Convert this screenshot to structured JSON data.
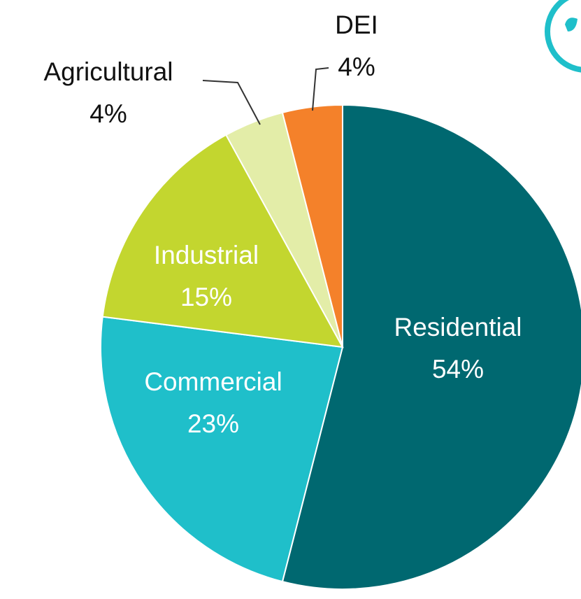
{
  "chart_data": {
    "type": "pie",
    "categories": [
      "Residential",
      "Commercial",
      "Industrial",
      "Agricultural",
      "DEI"
    ],
    "values": [
      54,
      23,
      15,
      4,
      4
    ],
    "value_labels": [
      "54%",
      "23%",
      "15%",
      "4%",
      "4%"
    ],
    "colors": [
      "#006870",
      "#1fbfca",
      "#c3d62f",
      "#e3eda8",
      "#f4812a"
    ]
  }
}
